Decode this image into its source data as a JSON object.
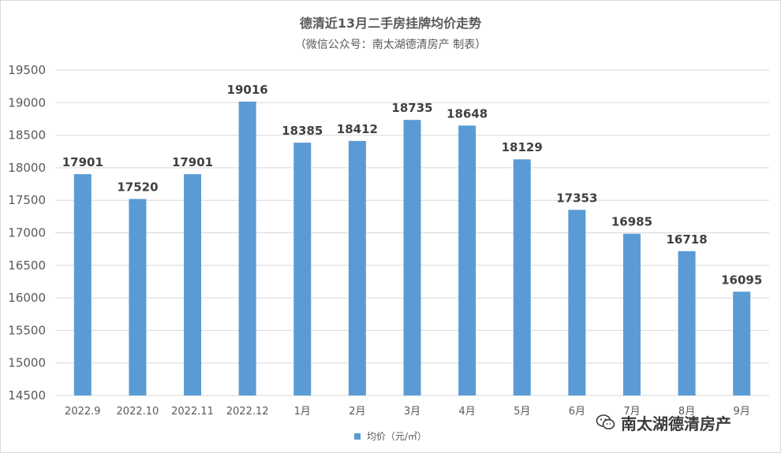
{
  "chart_data": {
    "type": "bar",
    "title": "德清近13月二手房挂牌均价走势",
    "subtitle": "（微信公众号：南太湖德清房产 制表）",
    "categories": [
      "2022.9",
      "2022.10",
      "2022.11",
      "2022.12",
      "1月",
      "2月",
      "3月",
      "4月",
      "5月",
      "6月",
      "7月",
      "8月",
      "9月"
    ],
    "series": [
      {
        "name": "均价（元/㎡）",
        "values": [
          17901,
          17520,
          17901,
          19016,
          18385,
          18412,
          18735,
          18648,
          18129,
          17353,
          16985,
          16718,
          16095
        ],
        "color": "#5b9bd5"
      }
    ],
    "ylim": [
      14500,
      19500
    ],
    "yticks": [
      14500,
      15000,
      15500,
      16000,
      16500,
      17000,
      17500,
      18000,
      18500,
      19000,
      19500
    ],
    "grid": true,
    "legend_position": "bottom"
  },
  "watermark": {
    "text": "南太湖德清房产",
    "icon": "wechat-icon"
  }
}
